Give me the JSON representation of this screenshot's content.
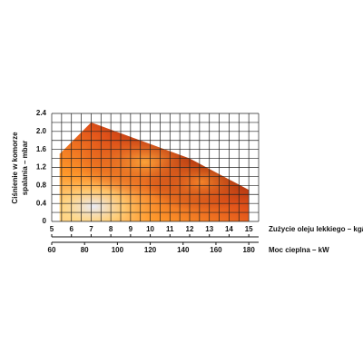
{
  "chart_data": {
    "type": "area",
    "x": [
      5.4,
      5.4,
      7,
      12,
      15,
      15
    ],
    "values": [
      0,
      1.5,
      2.2,
      1.4,
      0.7,
      0
    ],
    "color": "#e2531a",
    "xlim": [
      5,
      15.5
    ],
    "xticks": [
      5,
      6,
      7,
      8,
      9,
      10,
      11,
      12,
      13,
      14,
      15
    ],
    "x2lim": [
      60,
      186
    ],
    "x2ticks": [
      60,
      80,
      100,
      120,
      140,
      160,
      180
    ],
    "ylim": [
      0,
      2.4
    ],
    "yticks": [
      0,
      0.4,
      0.8,
      1.2,
      1.6,
      {
        "value": 2,
        "label": "2.0"
      },
      2.4
    ],
    "grid": true,
    "xlabel": "Zużycie oleju lekkiego – kg/h",
    "x2label": "Moc cieplna – kW",
    "ylabel": [
      "Ciśnienie w komorze",
      "spalania – mbar"
    ]
  }
}
